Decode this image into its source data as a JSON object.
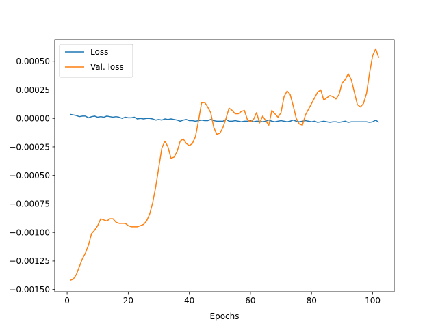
{
  "chart_data": {
    "type": "line",
    "title": "",
    "xlabel": "Epochs",
    "ylabel": "",
    "xlim": [
      -4.05,
      107.05
    ],
    "ylim": [
      -0.00152,
      0.00069
    ],
    "x_ticks": [
      0,
      20,
      40,
      60,
      80,
      100
    ],
    "y_ticks": [
      -0.0015,
      -0.00125,
      -0.001,
      -0.00075,
      -0.0005,
      -0.00025,
      0.0,
      0.00025,
      0.0005
    ],
    "y_tick_labels": [
      "−0.00150",
      "−0.00125",
      "−0.00100",
      "−0.00075",
      "−0.00050",
      "−0.00025",
      "0.00000",
      "0.00025",
      "0.00050"
    ],
    "x_tick_labels": [
      "0",
      "20",
      "40",
      "60",
      "80",
      "100"
    ],
    "grid": false,
    "legend_position": "top-left",
    "series": [
      {
        "name": "Loss",
        "color": "#1f77b4",
        "x": [
          1,
          2,
          3,
          4,
          5,
          6,
          7,
          8,
          9,
          10,
          11,
          12,
          13,
          14,
          15,
          16,
          17,
          18,
          19,
          20,
          21,
          22,
          23,
          24,
          25,
          26,
          27,
          28,
          29,
          30,
          31,
          32,
          33,
          34,
          35,
          36,
          37,
          38,
          39,
          40,
          41,
          42,
          43,
          44,
          45,
          46,
          47,
          48,
          49,
          50,
          51,
          52,
          53,
          54,
          55,
          56,
          57,
          58,
          59,
          60,
          61,
          62,
          63,
          64,
          65,
          66,
          67,
          68,
          69,
          70,
          71,
          72,
          73,
          74,
          75,
          76,
          77,
          78,
          79,
          80,
          81,
          82,
          83,
          84,
          85,
          86,
          87,
          88,
          89,
          90,
          91,
          92,
          93,
          94,
          95,
          96,
          97,
          98,
          99,
          100,
          101,
          102
        ],
        "y": [
          3.5e-05,
          3e-05,
          2.5e-05,
          1.5e-05,
          2e-05,
          2e-05,
          5e-06,
          1.5e-05,
          2e-05,
          1e-05,
          1.5e-05,
          1e-05,
          2e-05,
          1.5e-05,
          1e-05,
          1.5e-05,
          1e-05,
          0.0,
          1e-05,
          5e-06,
          5e-06,
          1e-05,
          -5e-06,
          0.0,
          -5e-06,
          0.0,
          0.0,
          -5e-06,
          -1.5e-05,
          -1e-05,
          -1.5e-05,
          -5e-06,
          -1e-05,
          -5e-06,
          -1e-05,
          -1.5e-05,
          -2.5e-05,
          -1.5e-05,
          -1e-05,
          -2e-05,
          -2e-05,
          -2.5e-05,
          -2e-05,
          -1.5e-05,
          -2e-05,
          -2e-05,
          -1e-05,
          -2e-05,
          -2.5e-05,
          -2.5e-05,
          -2.5e-05,
          -1e-05,
          -2.5e-05,
          -2.5e-05,
          -2e-05,
          -2.5e-05,
          -3e-05,
          -2.5e-05,
          -2.5e-05,
          -2e-05,
          -3e-05,
          -2.5e-05,
          -2.5e-05,
          -3e-05,
          -2.5e-05,
          -1.5e-05,
          -2.5e-05,
          -3e-05,
          -2.5e-05,
          -2e-05,
          -2.5e-05,
          -3e-05,
          -2.5e-05,
          -1.5e-05,
          -2.5e-05,
          -3e-05,
          -2.5e-05,
          -2e-05,
          -2.5e-05,
          -3e-05,
          -2.5e-05,
          -3.5e-05,
          -3e-05,
          -2.5e-05,
          -3e-05,
          -3.5e-05,
          -3e-05,
          -3e-05,
          -3.5e-05,
          -3e-05,
          -2.5e-05,
          -3.5e-05,
          -3e-05,
          -3e-05,
          -3e-05,
          -3e-05,
          -3e-05,
          -3e-05,
          -3.5e-05,
          -3e-05,
          -1.5e-05,
          -3.5e-05
        ]
      },
      {
        "name": "Val. loss",
        "color": "#ff7f0e",
        "x": [
          1,
          2,
          3,
          4,
          5,
          6,
          7,
          8,
          9,
          10,
          11,
          12,
          13,
          14,
          15,
          16,
          17,
          18,
          19,
          20,
          21,
          22,
          23,
          24,
          25,
          26,
          27,
          28,
          29,
          30,
          31,
          32,
          33,
          34,
          35,
          36,
          37,
          38,
          39,
          40,
          41,
          42,
          43,
          44,
          45,
          46,
          47,
          48,
          49,
          50,
          51,
          52,
          53,
          54,
          55,
          56,
          57,
          58,
          59,
          60,
          61,
          62,
          63,
          64,
          65,
          66,
          67,
          68,
          69,
          70,
          71,
          72,
          73,
          74,
          75,
          76,
          77,
          78,
          79,
          80,
          81,
          82,
          83,
          84,
          85,
          86,
          87,
          88,
          89,
          90,
          91,
          92,
          93,
          94,
          95,
          96,
          97,
          98,
          99,
          100,
          101,
          102
        ],
        "y": [
          -0.00142,
          -0.00141,
          -0.00137,
          -0.0013,
          -0.00123,
          -0.00118,
          -0.00111,
          -0.00101,
          -0.00098,
          -0.00094,
          -0.00088,
          -0.00089,
          -0.0009,
          -0.00088,
          -0.00088,
          -0.00091,
          -0.00092,
          -0.00092,
          -0.00092,
          -0.00094,
          -0.00095,
          -0.00095,
          -0.00095,
          -0.00094,
          -0.00093,
          -0.0009,
          -0.00084,
          -0.00074,
          -0.0006,
          -0.00043,
          -0.00026,
          -0.0002,
          -0.00025,
          -0.00035,
          -0.00034,
          -0.00029,
          -0.0002,
          -0.00018,
          -0.00022,
          -0.00024,
          -0.00022,
          -0.00016,
          -2e-05,
          0.000135,
          0.00014,
          0.0001,
          5e-05,
          -8e-05,
          -0.00014,
          -0.00013,
          -8e-05,
          0.0,
          9e-05,
          7e-05,
          4e-05,
          4e-05,
          6e-05,
          7e-05,
          -1e-05,
          -3e-05,
          -1e-05,
          5e-05,
          -4e-05,
          2e-05,
          -2e-05,
          -6e-05,
          7e-05,
          4e-05,
          1e-05,
          5e-05,
          0.00019,
          0.00024,
          0.00021,
          0.00011,
          0.0,
          -5e-05,
          -6e-05,
          3e-05,
          8e-05,
          0.00013,
          0.00018,
          0.00023,
          0.00025,
          0.00016,
          0.00018,
          0.0002,
          0.00019,
          0.00017,
          0.00021,
          0.00031,
          0.00034,
          0.00039,
          0.00034,
          0.00023,
          0.00012,
          0.0001,
          0.00013,
          0.00022,
          0.0004,
          0.00055,
          0.00061,
          0.00053
        ]
      }
    ]
  }
}
